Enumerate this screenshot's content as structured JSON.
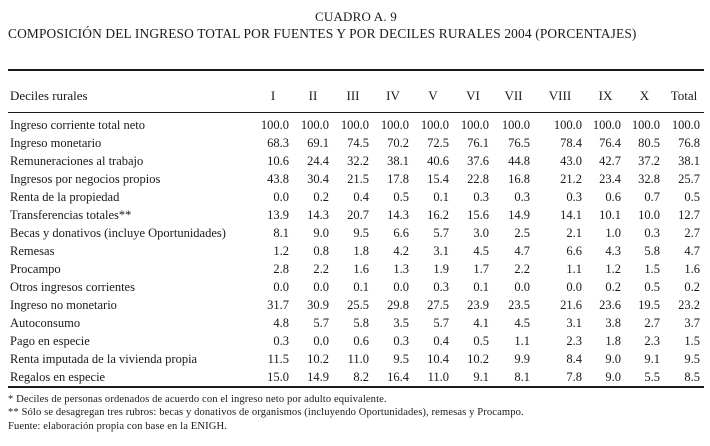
{
  "title": {
    "line1": "CUADRO A. 9",
    "line2": "COMPOSICIÓN DEL INGRESO TOTAL POR FUENTES Y POR DECILES RURALES 2004 (PORCENTAJES)"
  },
  "table": {
    "header_label": "Deciles rurales",
    "columns": [
      "I",
      "II",
      "III",
      "IV",
      "V",
      "VI",
      "VII",
      "VIII",
      "IX",
      "X",
      "Total"
    ],
    "rows": [
      {
        "label": "Ingreso corriente total neto",
        "values": [
          "100.0",
          "100.0",
          "100.0",
          "100.0",
          "100.0",
          "100.0",
          "100.0",
          "100.0",
          "100.0",
          "100.0",
          "100.0"
        ]
      },
      {
        "label": "Ingreso monetario",
        "values": [
          "68.3",
          "69.1",
          "74.5",
          "70.2",
          "72.5",
          "76.1",
          "76.5",
          "78.4",
          "76.4",
          "80.5",
          "76.8"
        ]
      },
      {
        "label": "Remuneraciones al trabajo",
        "values": [
          "10.6",
          "24.4",
          "32.2",
          "38.1",
          "40.6",
          "37.6",
          "44.8",
          "43.0",
          "42.7",
          "37.2",
          "38.1"
        ]
      },
      {
        "label": "Ingresos por negocios propios",
        "values": [
          "43.8",
          "30.4",
          "21.5",
          "17.8",
          "15.4",
          "22.8",
          "16.8",
          "21.2",
          "23.4",
          "32.8",
          "25.7"
        ]
      },
      {
        "label": "Renta de la propiedad",
        "values": [
          "0.0",
          "0.2",
          "0.4",
          "0.5",
          "0.1",
          "0.3",
          "0.3",
          "0.3",
          "0.6",
          "0.7",
          "0.5"
        ]
      },
      {
        "label": "Transferencias totales**",
        "values": [
          "13.9",
          "14.3",
          "20.7",
          "14.3",
          "16.2",
          "15.6",
          "14.9",
          "14.1",
          "10.1",
          "10.0",
          "12.7"
        ]
      },
      {
        "label": "Becas y donativos (incluye Oportunidades)",
        "values": [
          "8.1",
          "9.0",
          "9.5",
          "6.6",
          "5.7",
          "3.0",
          "2.5",
          "2.1",
          "1.0",
          "0.3",
          "2.7"
        ]
      },
      {
        "label": "Remesas",
        "values": [
          "1.2",
          "0.8",
          "1.8",
          "4.2",
          "3.1",
          "4.5",
          "4.7",
          "6.6",
          "4.3",
          "5.8",
          "4.7"
        ]
      },
      {
        "label": "Procampo",
        "values": [
          "2.8",
          "2.2",
          "1.6",
          "1.3",
          "1.9",
          "1.7",
          "2.2",
          "1.1",
          "1.2",
          "1.5",
          "1.6"
        ]
      },
      {
        "label": "Otros ingresos corrientes",
        "values": [
          "0.0",
          "0.0",
          "0.1",
          "0.0",
          "0.3",
          "0.1",
          "0.0",
          "0.0",
          "0.2",
          "0.5",
          "0.2"
        ]
      },
      {
        "label": "Ingreso no monetario",
        "values": [
          "31.7",
          "30.9",
          "25.5",
          "29.8",
          "27.5",
          "23.9",
          "23.5",
          "21.6",
          "23.6",
          "19.5",
          "23.2"
        ]
      },
      {
        "label": "Autoconsumo",
        "values": [
          "4.8",
          "5.7",
          "5.8",
          "3.5",
          "5.7",
          "4.1",
          "4.5",
          "3.1",
          "3.8",
          "2.7",
          "3.7"
        ]
      },
      {
        "label": "Pago en especie",
        "values": [
          "0.3",
          "0.0",
          "0.6",
          "0.3",
          "0.4",
          "0.5",
          "1.1",
          "2.3",
          "1.8",
          "2.3",
          "1.5"
        ]
      },
      {
        "label": "Renta imputada de la vivienda propia",
        "values": [
          "11.5",
          "10.2",
          "11.0",
          "9.5",
          "10.4",
          "10.2",
          "9.9",
          "8.4",
          "9.0",
          "9.1",
          "9.5"
        ]
      },
      {
        "label": "Regalos en especie",
        "values": [
          "15.0",
          "14.9",
          "8.2",
          "16.4",
          "11.0",
          "9.1",
          "8.1",
          "7.8",
          "9.0",
          "5.5",
          "8.5"
        ]
      }
    ]
  },
  "footnotes": [
    "* Deciles de personas ordenados de acuerdo con el ingreso neto por adulto equivalente.",
    "** Sólo se desagregan tres rubros: becas y donativos de organismos (incluyendo Oportunidades), remesas y Procampo.",
    "Fuente: elaboración propia con base en la ENIGH."
  ]
}
